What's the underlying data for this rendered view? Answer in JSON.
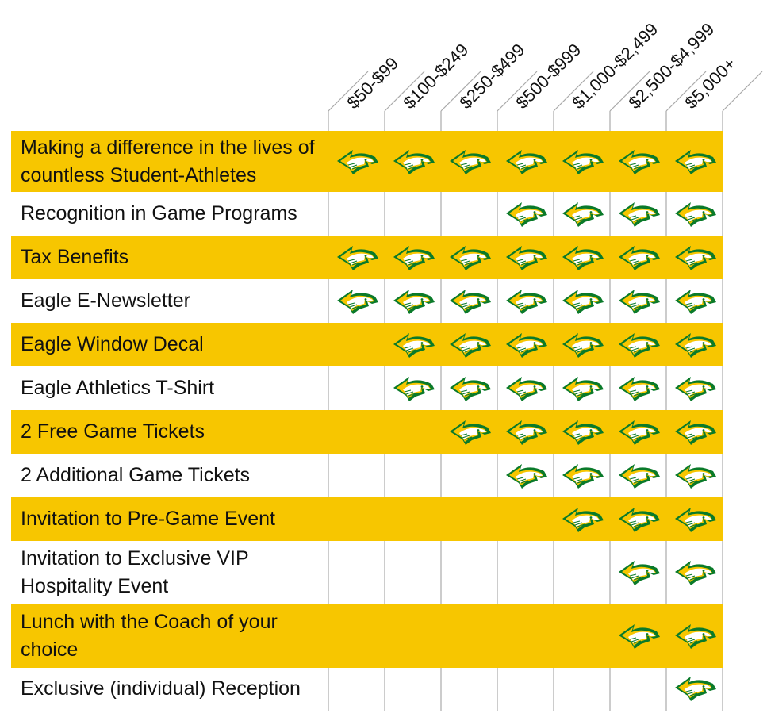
{
  "tiers": [
    "$50-$99",
    "$100-$249",
    "$250-$499",
    "$500-$999",
    "$1,000-$2,499",
    "$2,500-$4,999",
    "$5,000+"
  ],
  "icon": "eagle-head-logo-icon",
  "colors": {
    "highlight_row": "#f7c600",
    "eagle_green": "#0a7a2a",
    "eagle_yellow": "#f7c600",
    "grid_line": "#aaaaaa"
  },
  "benefits": [
    {
      "label": "Making a difference in the lives of countless Student-Athletes",
      "starts_at_tier": 1
    },
    {
      "label": "Recognition in Game Programs",
      "starts_at_tier": 4
    },
    {
      "label": "Tax Benefits",
      "starts_at_tier": 1
    },
    {
      "label": "Eagle E-Newsletter",
      "starts_at_tier": 1
    },
    {
      "label": "Eagle Window Decal",
      "starts_at_tier": 2
    },
    {
      "label": "Eagle Athletics T-Shirt",
      "starts_at_tier": 2
    },
    {
      "label": "2 Free Game Tickets",
      "starts_at_tier": 3
    },
    {
      "label": "2 Additional Game Tickets",
      "starts_at_tier": 4
    },
    {
      "label": "Invitation to Pre-Game Event",
      "starts_at_tier": 5
    },
    {
      "label": "Invitation to Exclusive VIP Hospitality Event",
      "starts_at_tier": 6
    },
    {
      "label": "Lunch with the Coach of your choice",
      "starts_at_tier": 6
    },
    {
      "label": "Exclusive (individual) Reception",
      "starts_at_tier": 7
    }
  ]
}
